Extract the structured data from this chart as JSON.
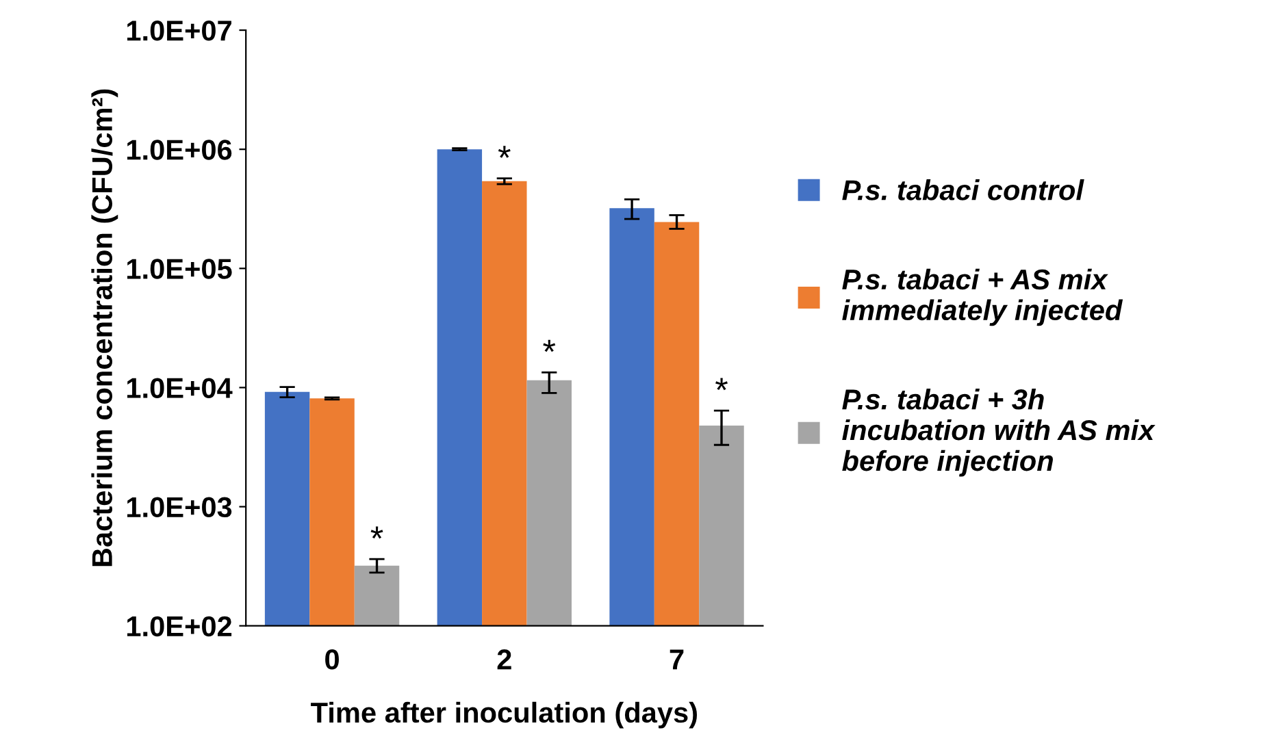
{
  "chart_data": {
    "type": "bar",
    "log": "y",
    "ylabel": "Bacterium concentration (CFU/cm²)",
    "xlabel": "Time after inoculation (days)",
    "categories": [
      "0",
      "2",
      "7"
    ],
    "series": [
      {
        "name": "P.s. tabaci control",
        "color": "#4472c4",
        "values": [
          9200,
          1000000,
          320000
        ],
        "errors": [
          [
            8300,
            10100
          ],
          [
            980000,
            1020000
          ],
          [
            260000,
            380000
          ]
        ]
      },
      {
        "name": "P.s. tabaci + AS mix immediately injected",
        "color": "#ed7d31",
        "values": [
          8100,
          540000,
          245000
        ],
        "errors": [
          [
            7950,
            8250
          ],
          [
            510000,
            570000
          ],
          [
            215000,
            280000
          ]
        ],
        "value_labels": [
          null,
          "*",
          null
        ]
      },
      {
        "name": "P.s. tabaci + 3h incubation with AS mix before injection",
        "color": "#a5a5a5",
        "values": [
          320,
          11500,
          4800
        ],
        "errors": [
          [
            280,
            363
          ],
          [
            9000,
            13400
          ],
          [
            3300,
            6400
          ]
        ],
        "value_labels": [
          "*",
          "*",
          "*"
        ]
      }
    ],
    "ylim": [
      100,
      10000000
    ],
    "yticks": [
      {
        "value": 100,
        "label": "1.0E+02"
      },
      {
        "value": 1000,
        "label": "1.0E+03"
      },
      {
        "value": 10000,
        "label": "1.0E+04"
      },
      {
        "value": 100000,
        "label": "1.0E+05"
      },
      {
        "value": 1000000,
        "label": "1.0E+06"
      },
      {
        "value": 10000000,
        "label": "1.0E+07"
      }
    ],
    "legend": "right",
    "grid": false
  }
}
